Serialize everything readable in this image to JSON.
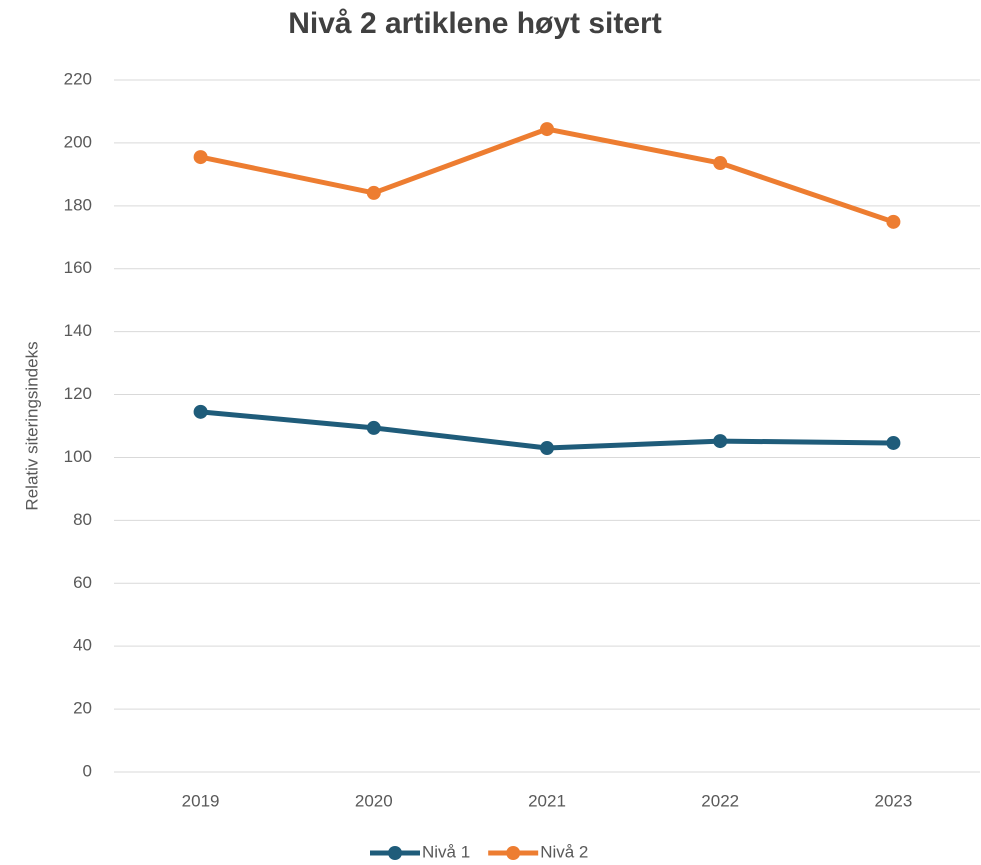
{
  "chart_data": {
    "type": "line",
    "title": "Nivå 2 artiklene høyt sitert",
    "y_label": "Relativ siteringsindeks",
    "categories": [
      "2019",
      "2020",
      "2021",
      "2022",
      "2023"
    ],
    "series": [
      {
        "name": "Nivå 1",
        "color": "#1f5c7a",
        "values": [
          114.5,
          109.4,
          103.0,
          105.2,
          104.6
        ]
      },
      {
        "name": "Nivå 2",
        "color": "#ed7d31",
        "values": [
          195.5,
          184.1,
          204.4,
          193.6,
          174.9
        ]
      }
    ],
    "ylim": [
      0,
      220
    ],
    "yticks": [
      0,
      20,
      40,
      60,
      80,
      100,
      120,
      140,
      160,
      180,
      200,
      220
    ],
    "grid": true,
    "legend": "bottom"
  }
}
